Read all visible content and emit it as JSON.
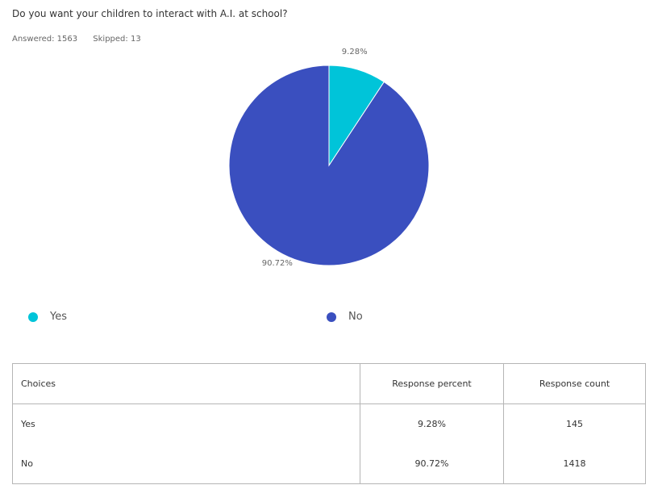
{
  "question": "Do you want your children to interact with A.I. at school?",
  "stats": {
    "answered": "Answered: 1563",
    "skipped": "Skipped: 13"
  },
  "colors": {
    "yes": "#00c4d9",
    "no": "#3a4fbf"
  },
  "chart_data": {
    "type": "pie",
    "title": "",
    "slices": [
      {
        "label": "Yes",
        "value": 9.28,
        "display": "9.28%",
        "color": "#00c4d9"
      },
      {
        "label": "No",
        "value": 90.72,
        "display": "90.72%",
        "color": "#3a4fbf"
      }
    ],
    "legend": [
      "Yes",
      "No"
    ],
    "legend_position": "bottom"
  },
  "table": {
    "headers": [
      "Choices",
      "Response percent",
      "Response count"
    ],
    "rows": [
      {
        "choice": "Yes",
        "percent": "9.28%",
        "count": "145"
      },
      {
        "choice": "No",
        "percent": "90.72%",
        "count": "1418"
      }
    ]
  }
}
